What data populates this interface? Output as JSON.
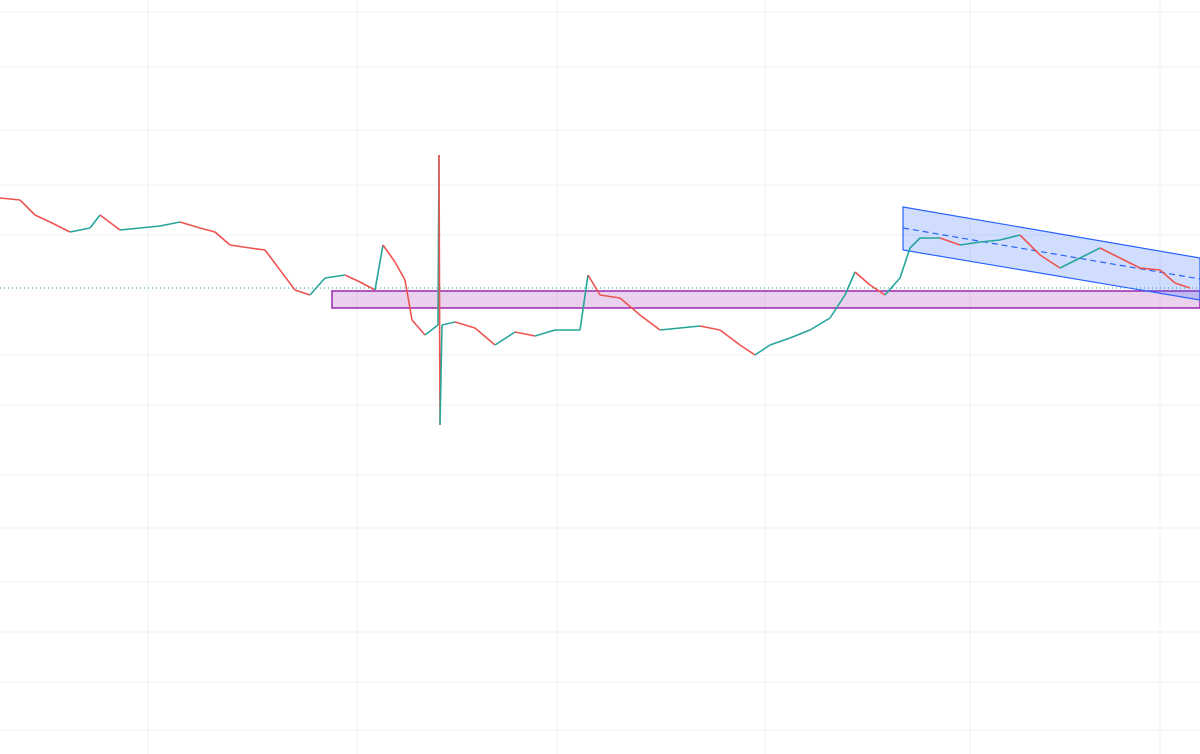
{
  "chart_data": {
    "type": "line",
    "x": [
      0,
      2,
      3.5,
      5,
      7,
      9,
      10,
      12,
      14,
      16,
      18,
      20,
      21.5,
      23,
      25,
      26.5,
      28,
      29.5,
      31,
      32.5,
      34.5,
      36,
      37.5,
      38.3,
      39.5,
      40.5,
      41.2,
      42.5,
      43.8,
      43.9,
      44,
      44.2,
      45.5,
      47.5,
      49.5,
      51.5,
      53.5,
      55.5,
      58,
      58.8,
      60,
      62,
      64,
      66,
      68,
      70,
      72,
      74,
      75.5,
      77,
      79,
      81,
      83,
      84.5,
      85.5,
      87,
      88.5,
      90,
      91,
      92,
      94,
      96,
      98,
      100,
      102,
      104,
      106,
      108,
      110,
      112,
      114,
      116,
      117.5,
      119
    ],
    "values": [
      55.6,
      55.4,
      53.9,
      53.2,
      52.2,
      52.6,
      53.9,
      52.4,
      52.6,
      52.8,
      53.2,
      52.6,
      52.2,
      50.9,
      50.6,
      50.4,
      48.4,
      46.4,
      45.9,
      47.6,
      47.9,
      47.2,
      46.4,
      50.9,
      49.2,
      47.4,
      43.4,
      41.9,
      42.9,
      59.9,
      32.9,
      42.9,
      43.2,
      42.6,
      40.9,
      42.2,
      41.8,
      42.4,
      42.4,
      47.9,
      45.9,
      45.6,
      43.9,
      42.4,
      42.6,
      42.8,
      42.4,
      40.9,
      39.9,
      40.9,
      41.6,
      42.4,
      43.6,
      45.9,
      48.2,
      46.9,
      45.9,
      47.6,
      50.6,
      51.6,
      51.6,
      50.9,
      51.2,
      51.4,
      51.9,
      49.9,
      48.6,
      49.6,
      50.6,
      49.6,
      48.6,
      48.4,
      47.1,
      46.6
    ],
    "xlim": [
      0,
      120
    ],
    "ylim": [
      0,
      75.4
    ],
    "grid": true,
    "up_color": "#26a69a",
    "down_color": "#ef5350"
  }
}
